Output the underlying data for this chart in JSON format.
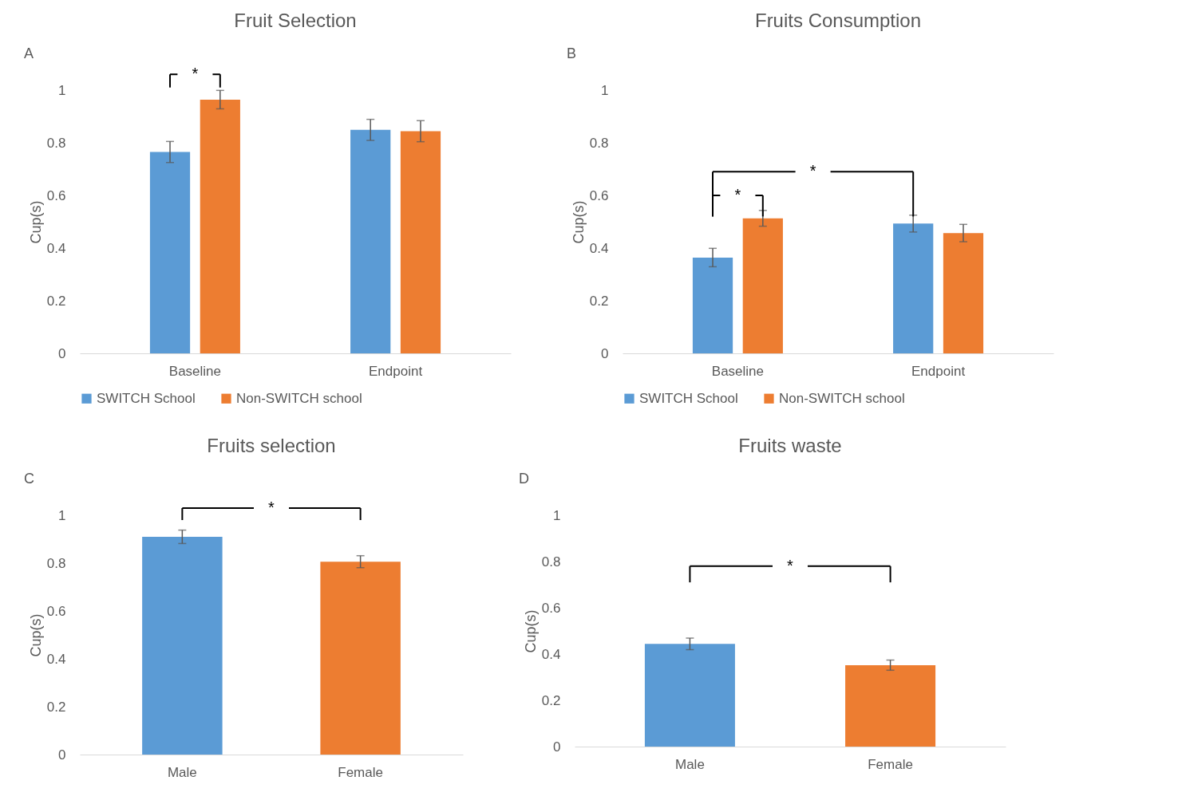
{
  "chart_data": [
    {
      "type": "bar",
      "title": "Fruit Selection",
      "ylabel": "Cup(s)",
      "categories": [
        "Baseline",
        "Endpoint"
      ],
      "series": [
        {
          "name": "SWITCH School",
          "color": "#5b9bd5",
          "values": [
            0.765,
            0.849
          ],
          "errors": [
            0.04,
            0.04
          ]
        },
        {
          "name": "Non-SWITCH school",
          "color": "#ed7d31",
          "values": [
            0.964,
            0.844
          ],
          "errors": [
            0.035,
            0.04
          ]
        }
      ],
      "ylim": [
        0,
        1
      ],
      "yticks": [
        0,
        0.2,
        0.4,
        0.6,
        0.8,
        1
      ],
      "grid": false,
      "legend": "bottom",
      "annotations": [
        "A",
        "*"
      ]
    },
    {
      "type": "bar",
      "title": "Fruits Consumption",
      "ylabel": "Cup(s)",
      "categories": [
        "Baseline",
        "Endpoint"
      ],
      "series": [
        {
          "name": "SWITCH School",
          "color": "#5b9bd5",
          "values": [
            0.364,
            0.493
          ],
          "errors": [
            0.035,
            0.032
          ]
        },
        {
          "name": "Non-SWITCH school",
          "color": "#ed7d31",
          "values": [
            0.513,
            0.457
          ],
          "errors": [
            0.03,
            0.033
          ]
        }
      ],
      "ylim": [
        0,
        1
      ],
      "yticks": [
        0,
        0.2,
        0.4,
        0.6,
        0.8,
        1
      ],
      "grid": false,
      "legend": "bottom",
      "annotations": [
        "B",
        "*",
        "*"
      ]
    },
    {
      "type": "bar",
      "title": "Fruits selection",
      "ylabel": "Cup(s)",
      "categories": [
        "Male",
        "Female"
      ],
      "values": [
        0.91,
        0.806
      ],
      "errors": [
        0.028,
        0.025
      ],
      "colors": [
        "#5b9bd5",
        "#ed7d31"
      ],
      "ylim": [
        0,
        1
      ],
      "yticks": [
        0,
        0.2,
        0.4,
        0.6,
        0.8,
        1
      ],
      "grid": false,
      "annotations": [
        "C",
        "*"
      ]
    },
    {
      "type": "bar",
      "title": "Fruits waste",
      "ylabel": "Cup(s)",
      "categories": [
        "Male",
        "Female"
      ],
      "values": [
        0.444,
        0.352
      ],
      "errors": [
        0.025,
        0.022
      ],
      "colors": [
        "#5b9bd5",
        "#ed7d31"
      ],
      "ylim": [
        0,
        1
      ],
      "yticks": [
        0,
        0.2,
        0.4,
        0.6,
        0.8,
        1
      ],
      "grid": false,
      "annotations": [
        "D",
        "*"
      ]
    }
  ]
}
